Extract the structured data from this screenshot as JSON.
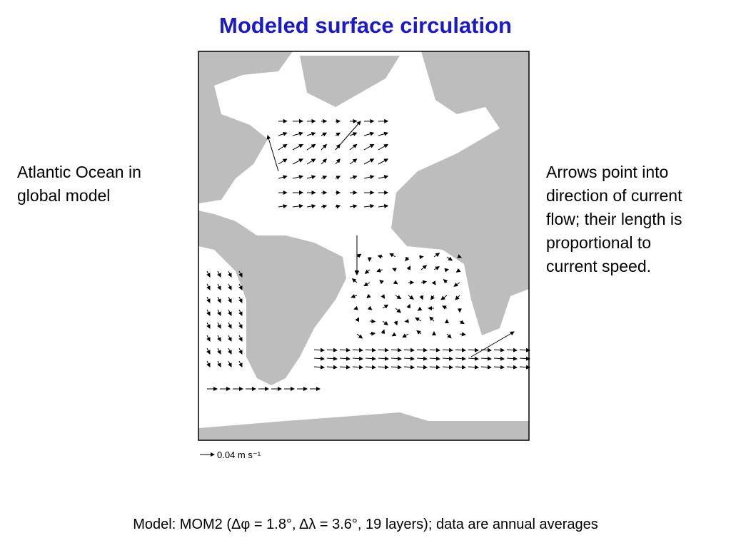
{
  "slide": {
    "title": "Modeled surface circulation",
    "left_caption": [
      "Atlantic Ocean in",
      "global model"
    ],
    "right_caption": [
      "Arrows point into",
      "direction of current",
      "flow; their length is",
      "proportional to",
      "current speed."
    ],
    "scale_label": "0.04 m s⁻¹",
    "footer": "Model: MOM2 (Δφ = 1.8°, Δλ = 3.6°, 19 layers); data are annual averages"
  }
}
